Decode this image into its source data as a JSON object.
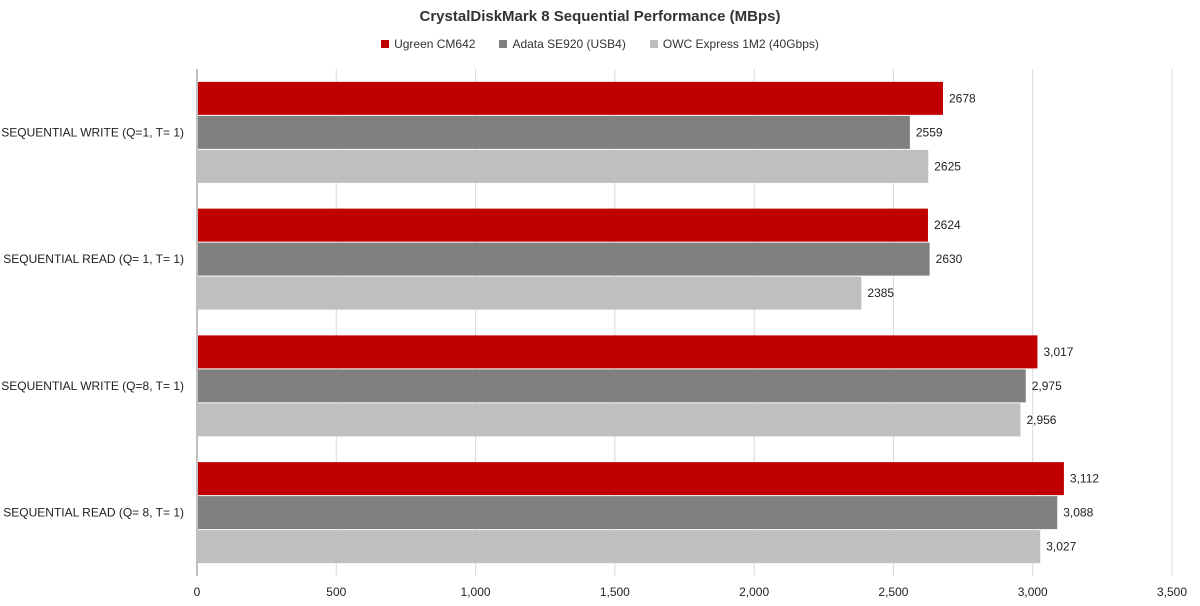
{
  "chart_data": {
    "type": "bar",
    "orientation": "horizontal",
    "title": "CrystalDiskMark 8 Sequential Performance (MBps)",
    "categories": [
      "SEQUENTIAL WRITE (Q=1, T= 1)",
      "SEQUENTIAL READ (Q= 1, T= 1)",
      "SEQUENTIAL WRITE (Q=8, T= 1)",
      "SEQUENTIAL READ (Q= 8, T= 1)"
    ],
    "series": [
      {
        "name": "Ugreen CM642",
        "color": "#c00000",
        "values": [
          2678,
          2624,
          3017,
          3112
        ],
        "labels": [
          "2678",
          "2624",
          "3,017",
          "3,112"
        ]
      },
      {
        "name": "Adata SE920 (USB4)",
        "color": "#808080",
        "values": [
          2559,
          2630,
          2975,
          3088
        ],
        "labels": [
          "2559",
          "2630",
          "2,975",
          "3,088"
        ]
      },
      {
        "name": "OWC Express 1M2 (40Gbps)",
        "color": "#bfbfbf",
        "values": [
          2625,
          2385,
          2956,
          3027
        ],
        "labels": [
          "2625",
          "2385",
          "2,956",
          "3,027"
        ]
      }
    ],
    "xlim": [
      0,
      3500
    ],
    "xticks": [
      0,
      500,
      1000,
      1500,
      2000,
      2500,
      3000,
      3500
    ],
    "xtick_labels": [
      "0",
      "500",
      "1,000",
      "1,500",
      "2,000",
      "2,500",
      "3,000",
      "3,500"
    ],
    "grid": true,
    "legend_position": "top"
  }
}
